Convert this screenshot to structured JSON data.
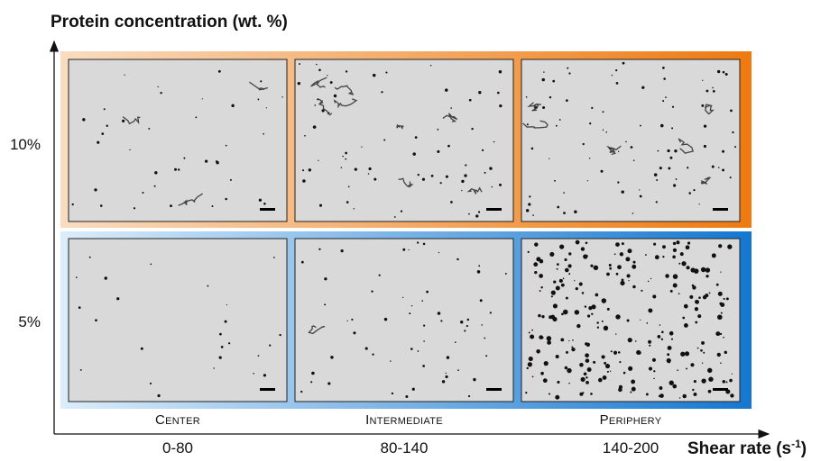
{
  "y_axis": {
    "title": "Protein concentration (wt. %)",
    "rows": [
      "10%",
      "5%"
    ]
  },
  "x_axis": {
    "title": "Shear rate (s",
    "title_superscript": "-1",
    "title_end": ")",
    "columns": [
      {
        "region": "Center",
        "range": "0-80"
      },
      {
        "region": "Intermediate",
        "range": "80-140"
      },
      {
        "region": "Periphery",
        "range": "140-200"
      }
    ]
  }
}
